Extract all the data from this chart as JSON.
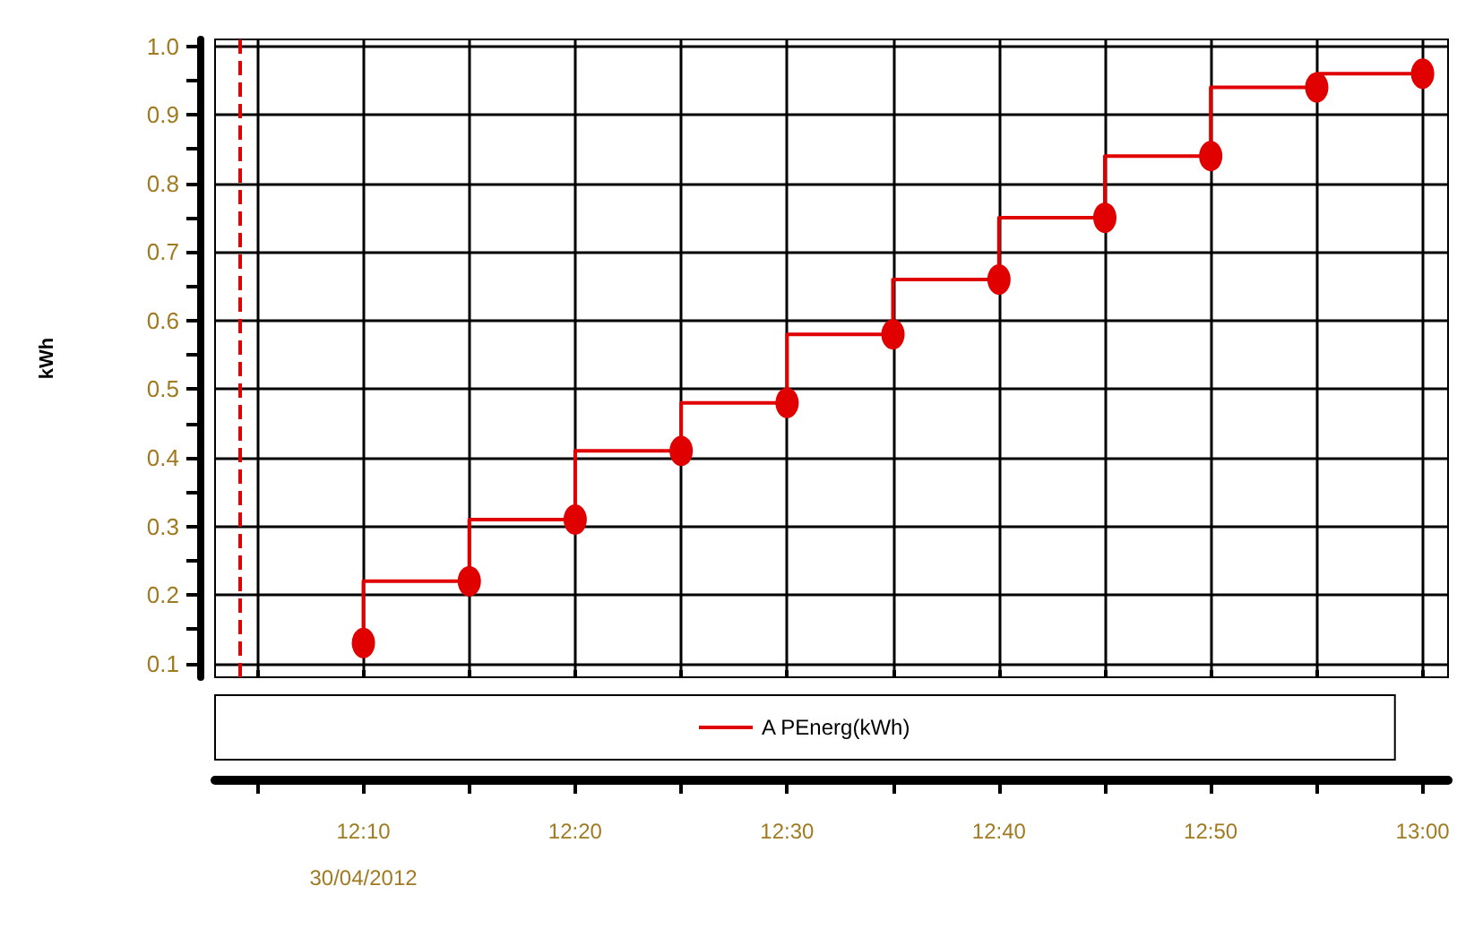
{
  "chart_data": {
    "type": "step",
    "ylabel": "kWh",
    "x": [
      12.1667,
      12.25,
      12.3333,
      12.4167,
      12.5,
      12.5833,
      12.6667,
      12.75,
      12.8333,
      12.9167,
      13
    ],
    "series": [
      {
        "name": "A PEnerg(kWh)",
        "color": "#e00000",
        "values": [
          0.13,
          0.22,
          0.31,
          0.41,
          0.48,
          0.58,
          0.66,
          0.75,
          0.84,
          0.94,
          0.96
        ]
      }
    ],
    "xlim": [
      12.05,
      13.02
    ],
    "xticks": [
      {
        "value": 12.0833,
        "label": null
      },
      {
        "value": 12.1667,
        "label": "12:10\n30/04/2012"
      },
      {
        "value": 12.25,
        "label": null
      },
      {
        "value": 12.3333,
        "label": "12:20"
      },
      {
        "value": 12.4167,
        "label": null
      },
      {
        "value": 12.5,
        "label": "12:30"
      },
      {
        "value": 12.5833,
        "label": null
      },
      {
        "value": 12.6667,
        "label": "12:40"
      },
      {
        "value": 12.75,
        "label": null
      },
      {
        "value": 12.8333,
        "label": "12:50"
      },
      {
        "value": 12.9167,
        "label": null
      },
      {
        "value": 13,
        "label": "13:00"
      }
    ],
    "ylim": [
      0.08,
      1.01
    ],
    "yticks": [
      0.1,
      {
        "value": 0.15,
        "label": null
      },
      0.2,
      {
        "value": 0.25,
        "label": null
      },
      0.3,
      {
        "value": 0.35,
        "label": null
      },
      0.4,
      {
        "value": 0.45,
        "label": null
      },
      0.5,
      {
        "value": 0.55,
        "label": null
      },
      0.6,
      {
        "value": 0.65,
        "label": null
      },
      0.7,
      {
        "value": 0.75,
        "label": null
      },
      0.8,
      {
        "value": 0.85,
        "label": null
      },
      0.9,
      {
        "value": 0.95,
        "label": null
      },
      {
        "value": 1,
        "label": "1.0"
      }
    ],
    "ref_lines": [
      {
        "axis": "x",
        "value": 12.07,
        "color": "#e00000",
        "line_style": "dashed"
      }
    ],
    "grid": true,
    "legend": "bottom",
    "marker": "circle",
    "line_style": "solid"
  }
}
